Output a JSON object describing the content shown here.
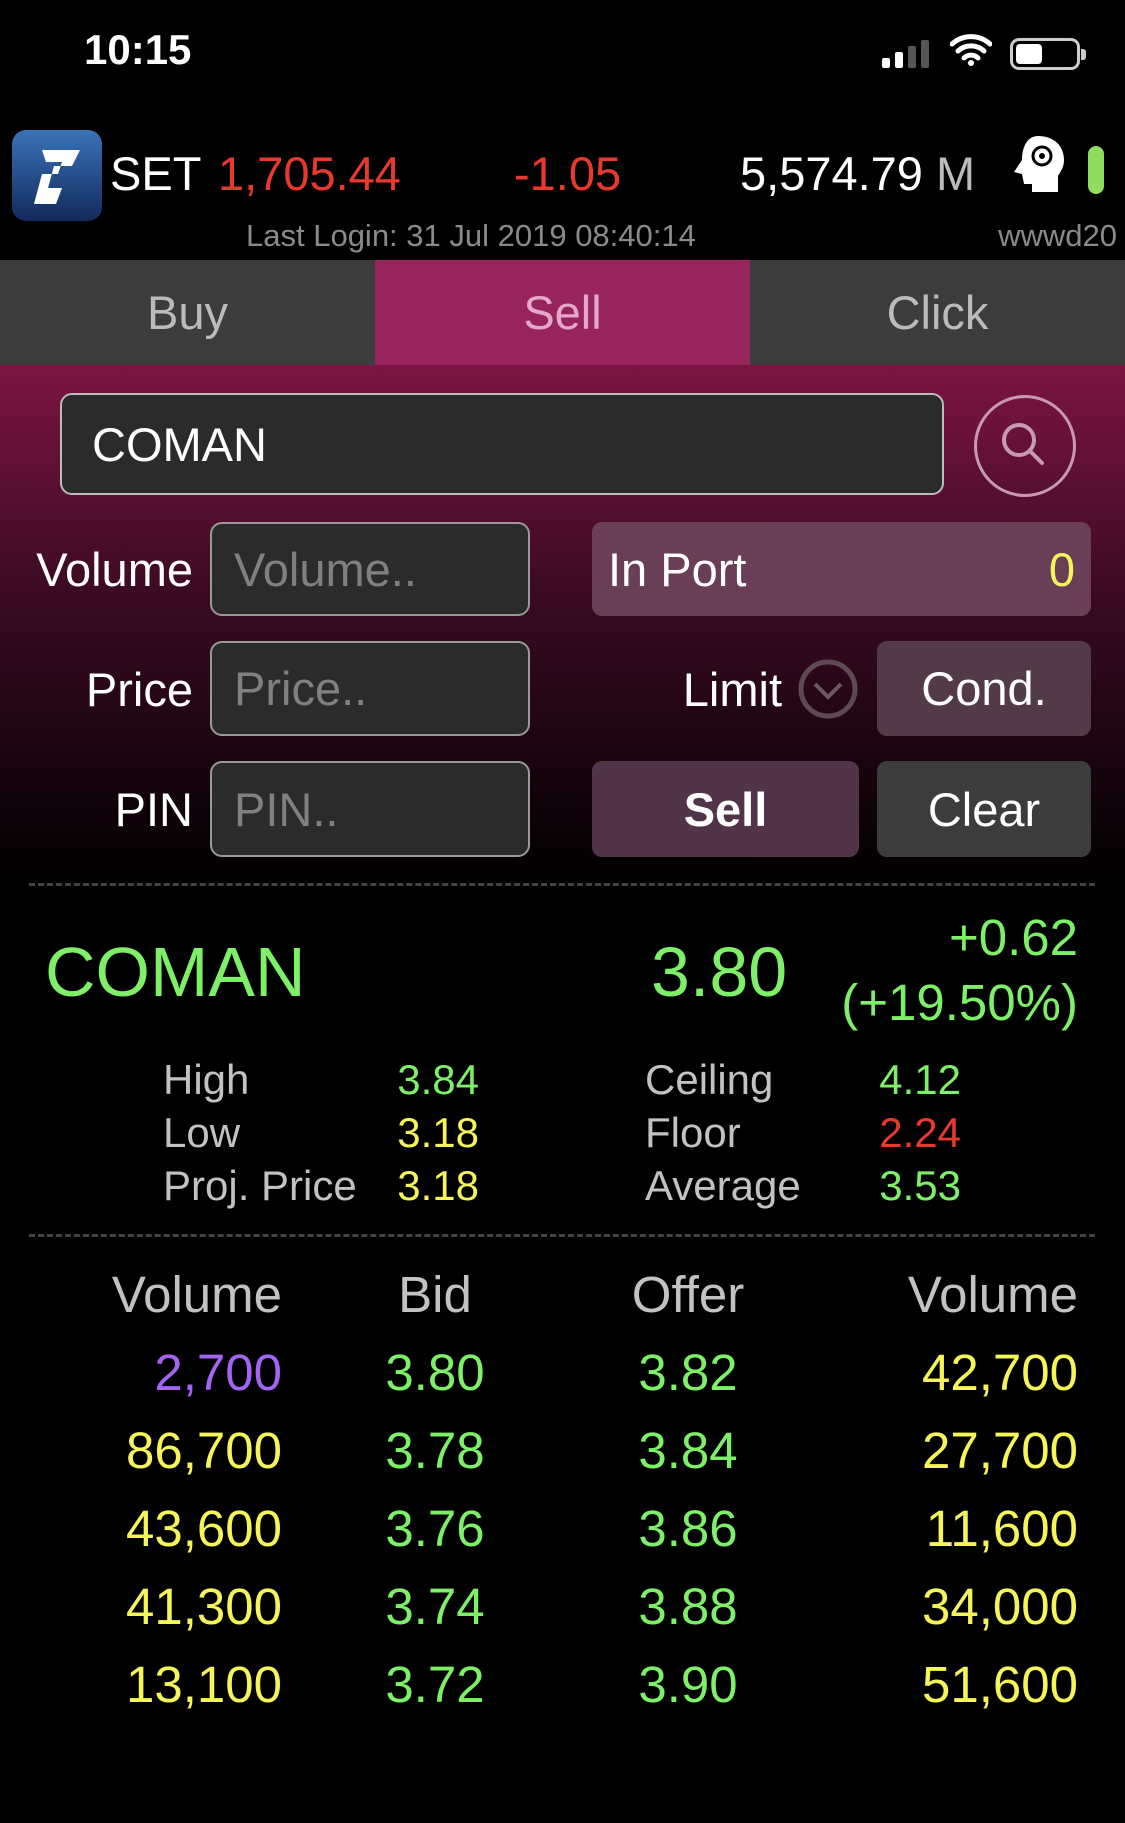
{
  "status_bar": {
    "time": "10:15",
    "signal_icon": "cellular-signal-icon",
    "wifi_icon": "wifi-icon",
    "battery_icon": "battery-icon"
  },
  "header": {
    "index_name": "SET",
    "index_value": "1,705.44",
    "index_change": "-1.05",
    "turnover": "5,574.79",
    "turnover_unit": "M",
    "last_login": "Last Login: 31 Jul 2019 08:40:14",
    "username": "wwwd20",
    "logo_icon": "app-logo-icon",
    "assistant_icon": "head-gear-icon",
    "connection_icon": "connection-status-icon"
  },
  "tabs": [
    {
      "label": "Buy"
    },
    {
      "label": "Sell",
      "active": true
    },
    {
      "label": "Click"
    }
  ],
  "form": {
    "symbol_value": "COMAN",
    "search_icon": "search-icon",
    "volume_label": "Volume",
    "volume_placeholder": "Volume..",
    "price_label": "Price",
    "price_placeholder": "Price..",
    "pin_label": "PIN",
    "pin_placeholder": "PIN..",
    "in_port_label": "In Port",
    "in_port_value": "0",
    "order_type": "Limit",
    "cond_label": "Cond.",
    "sell_label": "Sell",
    "clear_label": "Clear"
  },
  "quote": {
    "symbol": "COMAN",
    "last": "3.80",
    "change": "+0.62",
    "change_pct": "(+19.50%)",
    "stats_left": [
      {
        "label": "High",
        "value": "3.84",
        "color": "green"
      },
      {
        "label": "Low",
        "value": "3.18",
        "color": "yellow"
      },
      {
        "label": "Proj. Price",
        "value": "3.18",
        "color": "yellow"
      }
    ],
    "stats_right": [
      {
        "label": "Ceiling",
        "value": "4.12",
        "color": "green"
      },
      {
        "label": "Floor",
        "value": "2.24",
        "color": "red"
      },
      {
        "label": "Average",
        "value": "3.53",
        "color": "green"
      }
    ]
  },
  "book": {
    "headers": [
      "Volume",
      "Bid",
      "Offer",
      "Volume"
    ],
    "rows": [
      {
        "bid_vol": "2,700",
        "bid": "3.80",
        "offer": "3.82",
        "offer_vol": "42,700",
        "bid_vol_color": "purple"
      },
      {
        "bid_vol": "86,700",
        "bid": "3.78",
        "offer": "3.84",
        "offer_vol": "27,700"
      },
      {
        "bid_vol": "43,600",
        "bid": "3.76",
        "offer": "3.86",
        "offer_vol": "11,600"
      },
      {
        "bid_vol": "41,300",
        "bid": "3.74",
        "offer": "3.88",
        "offer_vol": "34,000"
      },
      {
        "bid_vol": "13,100",
        "bid": "3.72",
        "offer": "3.90",
        "offer_vol": "51,600"
      }
    ]
  },
  "colors": {
    "green": "#7ef068",
    "yellow": "#f5f55a",
    "red": "#e8392e",
    "purple": "#a464f2",
    "accent": "#98245c"
  }
}
